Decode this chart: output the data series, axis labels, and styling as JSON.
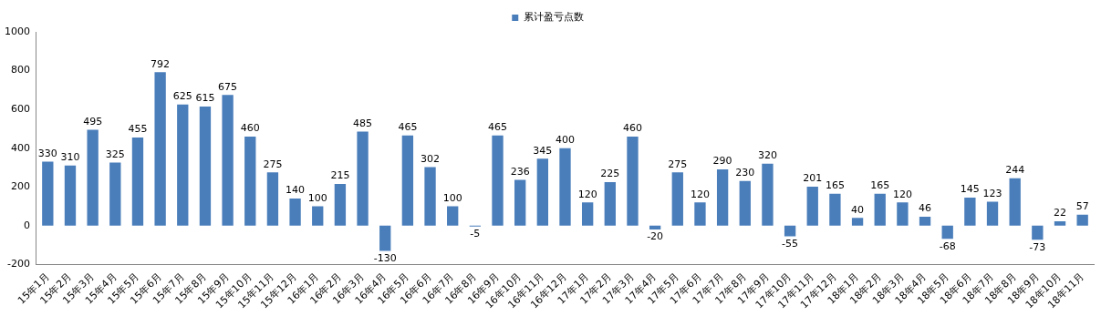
{
  "chart_data": {
    "type": "bar",
    "legend": "top",
    "grid": false,
    "data_labels": true,
    "categories": [
      "15年1月",
      "15年2月",
      "15年3月",
      "15年4月",
      "15年5月",
      "15年6月",
      "15年7月",
      "15年8月",
      "15年9月",
      "15年10月",
      "15年11月",
      "15年12月",
      "16年1月",
      "16年2月",
      "16年3月",
      "16年4月",
      "16年5月",
      "16年6月",
      "16年7月",
      "16年8月",
      "16年9月",
      "16年10月",
      "16年11月",
      "16年12月",
      "17年1月",
      "17年2月",
      "17年3月",
      "17年4月",
      "17年5月",
      "17年6月",
      "17年7月",
      "17年8月",
      "17年9月",
      "17年10月",
      "17年11月",
      "17年12月",
      "18年1月",
      "18年2月",
      "18年3月",
      "18年4月",
      "18年5月",
      "18年6月",
      "18年7月",
      "18年8月",
      "18年9月",
      "18年10月",
      "18年11月"
    ],
    "series": [
      {
        "name": "累计盈亏点数",
        "color": "#4a7ebb",
        "values": [
          330,
          310,
          495,
          325,
          455,
          792,
          625,
          615,
          675,
          460,
          275,
          140,
          100,
          215,
          485,
          -130,
          465,
          302,
          100,
          -5,
          465,
          236,
          345,
          400,
          120,
          225,
          460,
          -20,
          275,
          120,
          290,
          230,
          320,
          -55,
          201,
          165,
          40,
          165,
          120,
          46,
          -68,
          145,
          123,
          244,
          -73,
          22,
          57
        ]
      }
    ],
    "ylim": [
      -200,
      1000
    ],
    "yticks": [
      -200,
      0,
      200,
      400,
      600,
      800,
      1000
    ]
  }
}
